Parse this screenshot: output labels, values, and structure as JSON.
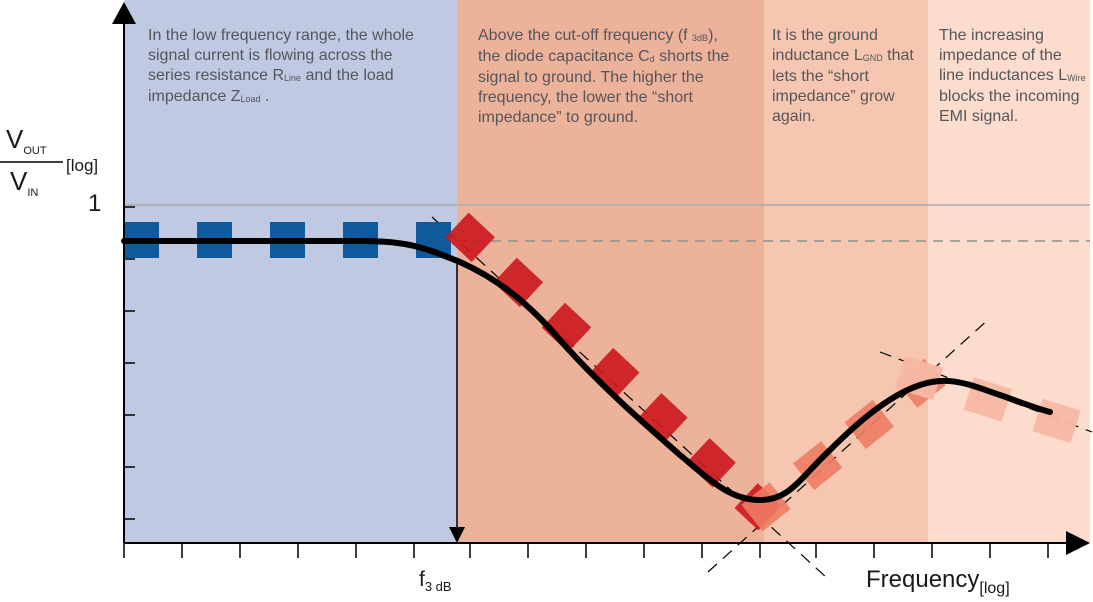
{
  "regions": [
    {
      "id": "low",
      "color": "#bfc9e2",
      "note": {
        "text": "In the low frequency range, the whole signal current is flowing across the series resistance R",
        "sub1": "Line",
        "text2": " and the load impedance Z",
        "sub2": "Load",
        "text3": " ."
      }
    },
    {
      "id": "cap",
      "color": "#ecb29a",
      "note": {
        "text": "Above the cut-off frequency (f ",
        "sub1": "3dB",
        "text2": "), the diode capacitance C",
        "sub2": "d",
        "text3": " shorts the signal to ground. The higher the frequency, the lower the “short impedance” to ground."
      }
    },
    {
      "id": "gnd",
      "color": "#f6c6b0",
      "note": {
        "text": "It is the ground inductance L",
        "sub1": "GND",
        "text2": " that lets the “short impedance” grow again.",
        "sub2": "",
        "text3": ""
      }
    },
    {
      "id": "wire",
      "color": "#fbdccd",
      "note": {
        "text": "The increasing impedance of the line inductances L",
        "sub1": "Wire",
        "text2": " blocks the incoming EMI signal.",
        "sub2": "",
        "text3": ""
      }
    }
  ],
  "axes": {
    "y_label": {
      "numerator": "V",
      "numerator_sub": "OUT",
      "denominator": "V",
      "denominator_sub": "IN",
      "suffix": "[log]"
    },
    "y_tick_one": "1",
    "x_label": "Frequency",
    "x_label_sub": "[log]",
    "f3db_label": "f",
    "f3db_sub": "3 dB"
  },
  "colors": {
    "blue_dash": "#0e5a9c",
    "red_dash": "#cc1b20",
    "salmon_dash": "#ef7c64",
    "pale_dash": "#f7b9a4",
    "curve": "#000000",
    "reference_line": "#a9a9a9",
    "guide_line": "#000000"
  }
}
